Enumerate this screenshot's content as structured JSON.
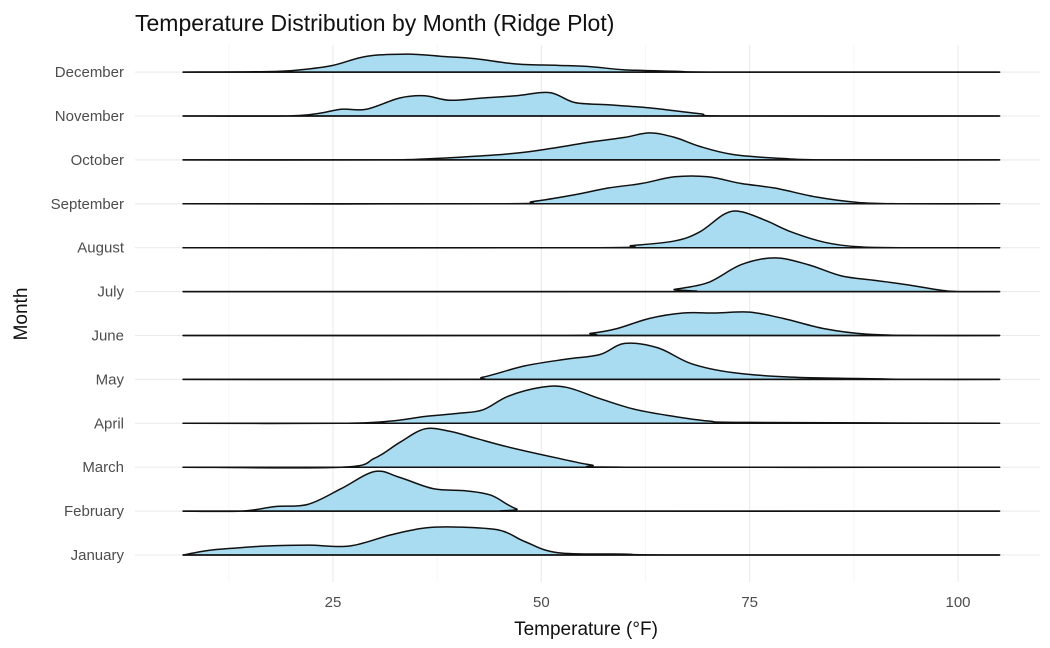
{
  "chart_data": {
    "type": "ridgeline",
    "title": "Temperature Distribution by Month (Ridge Plot)",
    "xlabel": "Temperature (°F)",
    "ylabel": "Month",
    "xlim": [
      7,
      105
    ],
    "x_ticks": [
      25,
      50,
      75,
      100
    ],
    "grid": true,
    "fill_color": "#a9dcf0",
    "line_color": "#111111",
    "categories": [
      "January",
      "February",
      "March",
      "April",
      "May",
      "June",
      "July",
      "August",
      "September",
      "October",
      "November",
      "December"
    ],
    "series": [
      {
        "name": "January",
        "points": [
          [
            7,
            0
          ],
          [
            10,
            0.1
          ],
          [
            13,
            0.15
          ],
          [
            17,
            0.2
          ],
          [
            22,
            0.22
          ],
          [
            27,
            0.2
          ],
          [
            32,
            0.45
          ],
          [
            36,
            0.6
          ],
          [
            40,
            0.62
          ],
          [
            45,
            0.55
          ],
          [
            48,
            0.3
          ],
          [
            52,
            0.05
          ],
          [
            60,
            0.02
          ],
          [
            66,
            0
          ],
          [
            105,
            0
          ]
        ]
      },
      {
        "name": "February",
        "points": [
          [
            7,
            0
          ],
          [
            14,
            0
          ],
          [
            18,
            0.1
          ],
          [
            22,
            0.15
          ],
          [
            26,
            0.5
          ],
          [
            30,
            0.88
          ],
          [
            33,
            0.75
          ],
          [
            37,
            0.5
          ],
          [
            41,
            0.45
          ],
          [
            44,
            0.35
          ],
          [
            47,
            0.05
          ],
          [
            50,
            0
          ],
          [
            105,
            0
          ]
        ]
      },
      {
        "name": "March",
        "points": [
          [
            7,
            0
          ],
          [
            26,
            0
          ],
          [
            30,
            0.2
          ],
          [
            33,
            0.55
          ],
          [
            36,
            0.85
          ],
          [
            39,
            0.8
          ],
          [
            42,
            0.65
          ],
          [
            46,
            0.45
          ],
          [
            52,
            0.2
          ],
          [
            56,
            0.05
          ],
          [
            60,
            0
          ],
          [
            105,
            0
          ]
        ]
      },
      {
        "name": "April",
        "points": [
          [
            7,
            0
          ],
          [
            26,
            0
          ],
          [
            32,
            0.05
          ],
          [
            36,
            0.15
          ],
          [
            40,
            0.22
          ],
          [
            43,
            0.3
          ],
          [
            46,
            0.6
          ],
          [
            50,
            0.8
          ],
          [
            53,
            0.8
          ],
          [
            57,
            0.55
          ],
          [
            61,
            0.32
          ],
          [
            65,
            0.18
          ],
          [
            70,
            0.05
          ],
          [
            75,
            0.02
          ],
          [
            105,
            0
          ]
        ]
      },
      {
        "name": "May",
        "points": [
          [
            7,
            0
          ],
          [
            40,
            0
          ],
          [
            43,
            0.05
          ],
          [
            48,
            0.3
          ],
          [
            53,
            0.45
          ],
          [
            57,
            0.55
          ],
          [
            60,
            0.8
          ],
          [
            64,
            0.7
          ],
          [
            68,
            0.35
          ],
          [
            73,
            0.15
          ],
          [
            80,
            0.05
          ],
          [
            88,
            0.02
          ],
          [
            95,
            0
          ],
          [
            105,
            0
          ]
        ]
      },
      {
        "name": "June",
        "points": [
          [
            7,
            0
          ],
          [
            52,
            0
          ],
          [
            56,
            0.05
          ],
          [
            59,
            0.15
          ],
          [
            63,
            0.38
          ],
          [
            67,
            0.5
          ],
          [
            71,
            0.5
          ],
          [
            75,
            0.52
          ],
          [
            79,
            0.38
          ],
          [
            84,
            0.15
          ],
          [
            89,
            0.03
          ],
          [
            95,
            0
          ],
          [
            105,
            0
          ]
        ]
      },
      {
        "name": "July",
        "points": [
          [
            7,
            0
          ],
          [
            64,
            0
          ],
          [
            66,
            0.05
          ],
          [
            70,
            0.2
          ],
          [
            74,
            0.6
          ],
          [
            78,
            0.75
          ],
          [
            82,
            0.6
          ],
          [
            86,
            0.35
          ],
          [
            90,
            0.25
          ],
          [
            94,
            0.15
          ],
          [
            98,
            0.03
          ],
          [
            100,
            0
          ],
          [
            105,
            0
          ]
        ]
      },
      {
        "name": "August",
        "points": [
          [
            7,
            0
          ],
          [
            56,
            0
          ],
          [
            61,
            0.05
          ],
          [
            66,
            0.15
          ],
          [
            69,
            0.35
          ],
          [
            72,
            0.75
          ],
          [
            74,
            0.8
          ],
          [
            77,
            0.6
          ],
          [
            80,
            0.35
          ],
          [
            84,
            0.12
          ],
          [
            88,
            0.02
          ],
          [
            93,
            0
          ],
          [
            105,
            0
          ]
        ]
      },
      {
        "name": "September",
        "points": [
          [
            7,
            0
          ],
          [
            45,
            0
          ],
          [
            49,
            0.05
          ],
          [
            54,
            0.2
          ],
          [
            58,
            0.35
          ],
          [
            62,
            0.45
          ],
          [
            66,
            0.6
          ],
          [
            70,
            0.6
          ],
          [
            74,
            0.45
          ],
          [
            78,
            0.35
          ],
          [
            83,
            0.15
          ],
          [
            88,
            0.03
          ],
          [
            93,
            0
          ],
          [
            105,
            0
          ]
        ]
      },
      {
        "name": "October",
        "points": [
          [
            7,
            0
          ],
          [
            30,
            0
          ],
          [
            36,
            0.02
          ],
          [
            42,
            0.08
          ],
          [
            47,
            0.15
          ],
          [
            51,
            0.25
          ],
          [
            56,
            0.4
          ],
          [
            60,
            0.5
          ],
          [
            63,
            0.6
          ],
          [
            66,
            0.5
          ],
          [
            69,
            0.3
          ],
          [
            73,
            0.12
          ],
          [
            79,
            0.03
          ],
          [
            85,
            0
          ],
          [
            105,
            0
          ]
        ]
      },
      {
        "name": "November",
        "points": [
          [
            7,
            0
          ],
          [
            19,
            0
          ],
          [
            23,
            0.05
          ],
          [
            26,
            0.15
          ],
          [
            29,
            0.15
          ],
          [
            33,
            0.4
          ],
          [
            36,
            0.45
          ],
          [
            39,
            0.35
          ],
          [
            43,
            0.4
          ],
          [
            47,
            0.45
          ],
          [
            51,
            0.52
          ],
          [
            54,
            0.3
          ],
          [
            58,
            0.25
          ],
          [
            63,
            0.18
          ],
          [
            69,
            0.05
          ],
          [
            73,
            0
          ],
          [
            105,
            0
          ]
        ]
      },
      {
        "name": "December",
        "points": [
          [
            7,
            0
          ],
          [
            17,
            0.01
          ],
          [
            21,
            0.05
          ],
          [
            25,
            0.15
          ],
          [
            29,
            0.35
          ],
          [
            34,
            0.4
          ],
          [
            38,
            0.35
          ],
          [
            42,
            0.3
          ],
          [
            47,
            0.18
          ],
          [
            52,
            0.15
          ],
          [
            56,
            0.12
          ],
          [
            60,
            0.05
          ],
          [
            66,
            0.02
          ],
          [
            72,
            0
          ],
          [
            105,
            0
          ]
        ]
      }
    ]
  }
}
